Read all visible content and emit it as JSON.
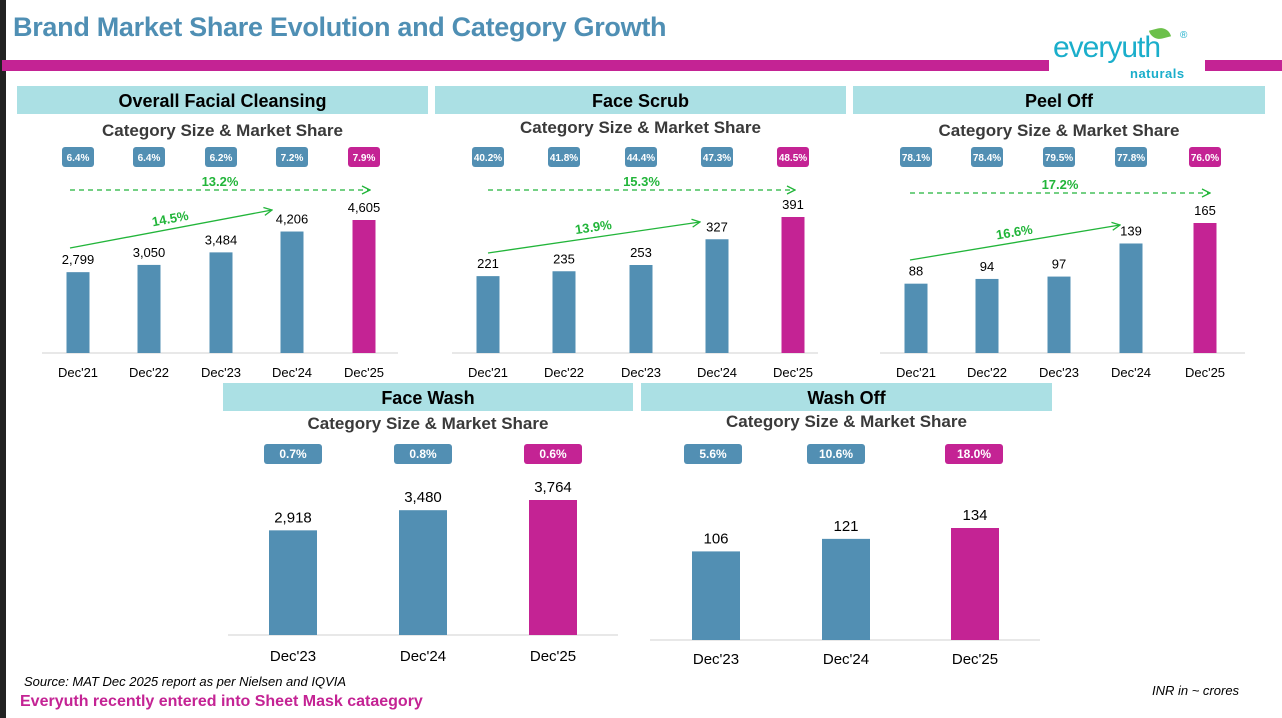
{
  "title": "Brand Market Share Evolution and Category Growth",
  "logo": {
    "text": "everyuth",
    "sub": "naturals",
    "reg": "®"
  },
  "colors": {
    "bar": "#528fb3",
    "highlight": "#c42394",
    "growth": "#22b53a",
    "header_bg": "#abe0e4",
    "title": "#4f8fb4"
  },
  "chart_data": [
    {
      "type": "bar",
      "title": "Overall Facial Cleansing",
      "subtitle": "Category Size & Market Share",
      "categories": [
        "Dec'21",
        "Dec'22",
        "Dec'23",
        "Dec'24",
        "Dec'25"
      ],
      "values": [
        2799,
        3050,
        3484,
        4206,
        4605
      ],
      "value_labels": [
        "2,799",
        "3,050",
        "3,484",
        "4,206",
        "4,605"
      ],
      "market_share": [
        "6.4%",
        "6.4%",
        "6.2%",
        "7.2%",
        "7.9%"
      ],
      "growth_short": "14.5%",
      "growth_long": "13.2%"
    },
    {
      "type": "bar",
      "title": "Face Scrub",
      "subtitle": "Category Size & Market Share",
      "categories": [
        "Dec'21",
        "Dec'22",
        "Dec'23",
        "Dec'24",
        "Dec'25"
      ],
      "values": [
        221,
        235,
        253,
        327,
        391
      ],
      "value_labels": [
        "221",
        "235",
        "253",
        "327",
        "391"
      ],
      "market_share": [
        "40.2%",
        "41.8%",
        "44.4%",
        "47.3%",
        "48.5%"
      ],
      "growth_short": "13.9%",
      "growth_long": "15.3%"
    },
    {
      "type": "bar",
      "title": "Peel Off",
      "subtitle": "Category Size & Market Share",
      "categories": [
        "Dec'21",
        "Dec'22",
        "Dec'23",
        "Dec'24",
        "Dec'25"
      ],
      "values": [
        88,
        94,
        97,
        139,
        165
      ],
      "value_labels": [
        "88",
        "94",
        "97",
        "139",
        "165"
      ],
      "market_share": [
        "78.1%",
        "78.4%",
        "79.5%",
        "77.8%",
        "76.0%"
      ],
      "growth_short": "16.6%",
      "growth_long": "17.2%"
    },
    {
      "type": "bar",
      "title": "Face Wash",
      "subtitle": "Category Size & Market Share",
      "categories": [
        "Dec'23",
        "Dec'24",
        "Dec'25"
      ],
      "values": [
        2918,
        3480,
        3764
      ],
      "value_labels": [
        "2,918",
        "3,480",
        "3,764"
      ],
      "market_share": [
        "0.7%",
        "0.8%",
        "0.6%"
      ]
    },
    {
      "type": "bar",
      "title": "Wash Off",
      "subtitle": "Category Size & Market Share",
      "categories": [
        "Dec'23",
        "Dec'24",
        "Dec'25"
      ],
      "values": [
        106,
        121,
        134
      ],
      "value_labels": [
        "106",
        "121",
        "134"
      ],
      "market_share": [
        "5.6%",
        "10.6%",
        "18.0%"
      ]
    }
  ],
  "footer": {
    "source": "Source: MAT Dec 2025 report as per Nielsen and IQVIA",
    "note": "Everyuth recently entered into Sheet Mask cataegory",
    "unit": "INR in ~ crores"
  }
}
